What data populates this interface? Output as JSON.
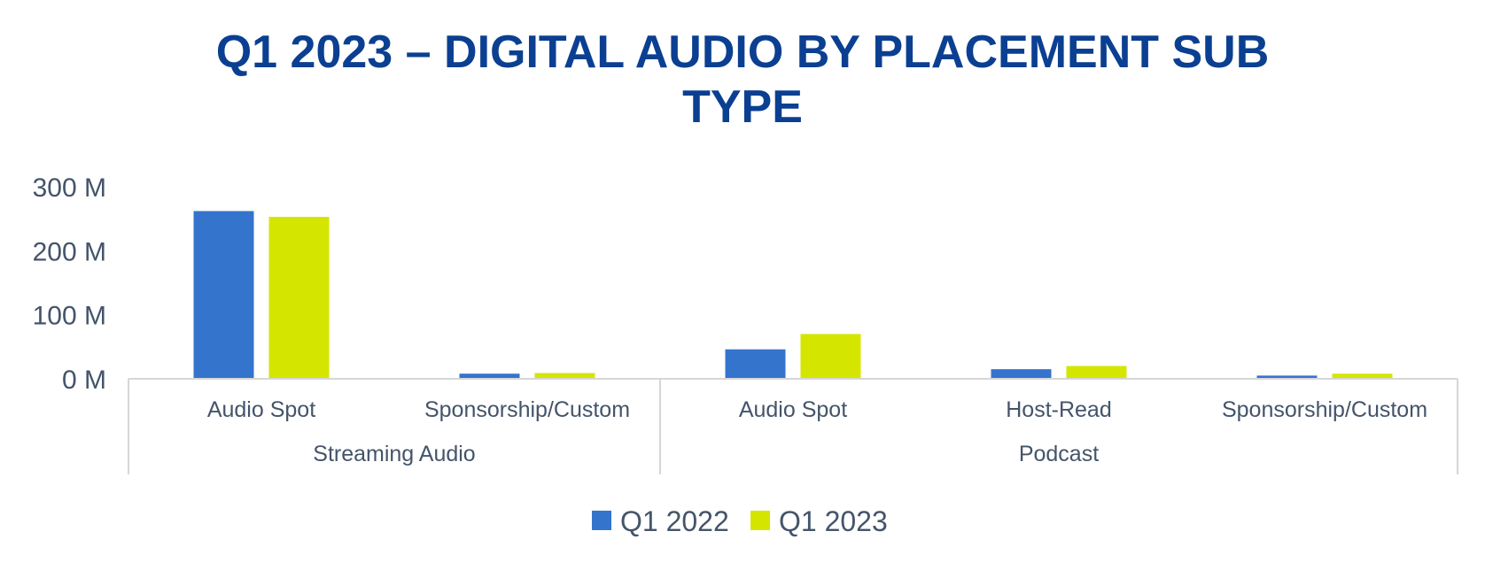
{
  "chart_data": {
    "type": "bar",
    "title_lines": [
      "Q1 2023 – DIGITAL AUDIO BY PLACEMENT SUB",
      "TYPE"
    ],
    "xlabel": "",
    "ylabel": "",
    "groups": [
      {
        "label": "Streaming Audio",
        "categories": [
          "Audio Spot",
          "Sponsorship/Custom"
        ]
      },
      {
        "label": "Podcast",
        "categories": [
          "Audio Spot",
          "Host-Read",
          "Sponsorship/Custom"
        ]
      }
    ],
    "series": [
      {
        "name": "Q1 2022",
        "color": "#3474cd",
        "values": [
          262,
          8,
          46,
          15,
          5
        ]
      },
      {
        "name": "Q1 2023",
        "color": "#d4e600",
        "values": [
          253,
          9,
          70,
          20,
          8
        ]
      }
    ],
    "value_unit": "M",
    "ylim": [
      0,
      300
    ],
    "yticks": [
      {
        "value": 0,
        "label": "0 M"
      },
      {
        "value": 100,
        "label": "100 M"
      },
      {
        "value": 200,
        "label": "200 M"
      },
      {
        "value": 300,
        "label": "300 M"
      }
    ],
    "grid": false,
    "legend_position": "bottom"
  }
}
